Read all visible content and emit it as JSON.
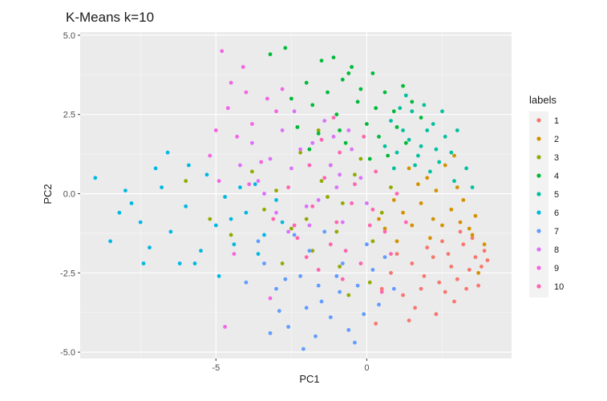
{
  "chart_data": {
    "type": "scatter",
    "title": "K-Means k=10",
    "xlabel": "PC1",
    "ylabel": "PC2",
    "xlim": [
      -9.5,
      4.8
    ],
    "ylim": [
      -5.2,
      5.1
    ],
    "x_ticks": [
      -5,
      0
    ],
    "x_tick_labels": [
      "-5",
      "0"
    ],
    "y_ticks": [
      -5.0,
      -2.5,
      0.0,
      2.5,
      5.0
    ],
    "y_tick_labels": [
      "-5.0",
      "-2.5",
      "0.0",
      "2.5",
      "5.0"
    ],
    "grid": true,
    "panel_background": "#ebebeb",
    "legend": {
      "title": "labels",
      "placement": "right"
    },
    "series": [
      {
        "name": "1",
        "color": "#F8766D",
        "points": [
          [
            3.2,
            -1.6
          ],
          [
            3.6,
            -2.0
          ],
          [
            2.8,
            -2.3
          ],
          [
            3.9,
            -1.8
          ],
          [
            2.5,
            -1.5
          ],
          [
            3.0,
            -2.7
          ],
          [
            3.4,
            -2.4
          ],
          [
            2.2,
            -2.0
          ],
          [
            3.7,
            -2.9
          ],
          [
            2.6,
            -3.1
          ],
          [
            1.9,
            -2.6
          ],
          [
            3.1,
            -1.2
          ],
          [
            2.9,
            -3.4
          ],
          [
            2.0,
            -1.7
          ],
          [
            3.5,
            -1.4
          ],
          [
            1.5,
            -2.2
          ],
          [
            2.4,
            -2.8
          ],
          [
            3.8,
            -2.3
          ],
          [
            1.2,
            -3.2
          ],
          [
            0.8,
            -2.5
          ],
          [
            1.6,
            -3.6
          ],
          [
            0.5,
            -3.0
          ],
          [
            2.3,
            -3.8
          ],
          [
            1.0,
            -1.9
          ],
          [
            4.0,
            -2.1
          ],
          [
            2.7,
            -1.9
          ],
          [
            3.3,
            -3.0
          ],
          [
            1.8,
            -3.0
          ],
          [
            0.3,
            -4.1
          ],
          [
            1.4,
            -4.0
          ]
        ]
      },
      {
        "name": "2",
        "color": "#D39200",
        "points": [
          [
            3.5,
            -1.3
          ],
          [
            2.8,
            -0.5
          ],
          [
            2.2,
            -0.8
          ],
          [
            3.0,
            0.2
          ],
          [
            2.5,
            -1.0
          ],
          [
            1.8,
            -0.3
          ],
          [
            3.6,
            -0.7
          ],
          [
            2.0,
            0.5
          ],
          [
            1.5,
            -1.0
          ],
          [
            3.2,
            -0.2
          ],
          [
            2.6,
            0.9
          ],
          [
            1.2,
            -0.6
          ],
          [
            3.9,
            -1.6
          ],
          [
            1.7,
            0.3
          ],
          [
            2.9,
            1.2
          ],
          [
            0.9,
            -0.2
          ],
          [
            3.4,
            -1.1
          ],
          [
            2.3,
            0.1
          ],
          [
            1.4,
            0.8
          ],
          [
            0.6,
            -1.1
          ],
          [
            3.1,
            -0.9
          ],
          [
            2.1,
            -1.4
          ],
          [
            1.0,
            -1.5
          ],
          [
            3.7,
            -2.5
          ],
          [
            0.4,
            -0.8
          ]
        ]
      },
      {
        "name": "3",
        "color": "#93AA00",
        "points": [
          [
            -2.0,
            -0.8
          ],
          [
            -1.5,
            0.4
          ],
          [
            -0.8,
            -0.3
          ],
          [
            -2.5,
            -1.1
          ],
          [
            -1.2,
            0.9
          ],
          [
            0.2,
            -1.5
          ],
          [
            -3.0,
            0.1
          ],
          [
            -0.4,
            0.6
          ],
          [
            -1.8,
            -1.8
          ],
          [
            -0.9,
            -2.3
          ],
          [
            -2.2,
            1.3
          ],
          [
            0.5,
            -0.6
          ],
          [
            -1.0,
            -1.2
          ],
          [
            -3.4,
            -0.5
          ],
          [
            -0.2,
            1.1
          ],
          [
            -4.5,
            -1.3
          ],
          [
            -5.2,
            -0.8
          ],
          [
            -1.6,
            2.0
          ],
          [
            0.8,
            0.2
          ],
          [
            -0.6,
            -3.2
          ],
          [
            -2.8,
            -2.2
          ],
          [
            -1.3,
            -0.1
          ],
          [
            0.1,
            -2.8
          ],
          [
            -3.8,
            0.7
          ],
          [
            -6.0,
            0.4
          ]
        ]
      },
      {
        "name": "4",
        "color": "#00BA38",
        "points": [
          [
            -1.5,
            4.2
          ],
          [
            -0.8,
            3.6
          ],
          [
            0.2,
            3.8
          ],
          [
            -0.3,
            2.9
          ],
          [
            0.6,
            3.2
          ],
          [
            -1.0,
            2.5
          ],
          [
            -2.0,
            3.5
          ],
          [
            0.9,
            2.6
          ],
          [
            -0.5,
            4.0
          ],
          [
            1.2,
            3.4
          ],
          [
            -1.8,
            2.8
          ],
          [
            0.0,
            2.2
          ],
          [
            0.4,
            1.8
          ],
          [
            -1.3,
            3.2
          ],
          [
            -2.3,
            2.1
          ],
          [
            1.5,
            2.9
          ],
          [
            -0.7,
            1.6
          ],
          [
            0.7,
            1.2
          ],
          [
            -1.6,
            1.9
          ],
          [
            1.0,
            2.1
          ],
          [
            -2.7,
            4.6
          ],
          [
            -0.2,
            3.3
          ],
          [
            -1.1,
            4.3
          ],
          [
            0.3,
            2.7
          ],
          [
            -2.5,
            3.0
          ],
          [
            1.8,
            2.4
          ],
          [
            -0.9,
            2.0
          ],
          [
            1.3,
            1.6
          ],
          [
            -3.2,
            4.4
          ],
          [
            -1.9,
            1.4
          ],
          [
            0.1,
            1.1
          ],
          [
            -0.6,
            3.8
          ]
        ]
      },
      {
        "name": "5",
        "color": "#00C19F",
        "points": [
          [
            1.2,
            2.0
          ],
          [
            1.8,
            1.5
          ],
          [
            2.2,
            2.2
          ],
          [
            1.5,
            2.6
          ],
          [
            2.6,
            1.8
          ],
          [
            1.0,
            1.3
          ],
          [
            2.4,
            1.0
          ],
          [
            1.9,
            2.8
          ],
          [
            2.8,
            1.3
          ],
          [
            1.4,
            1.7
          ],
          [
            0.8,
            2.3
          ],
          [
            2.1,
            0.7
          ],
          [
            3.0,
            2.0
          ],
          [
            1.6,
            0.9
          ],
          [
            2.9,
            0.4
          ],
          [
            0.6,
            1.5
          ],
          [
            2.0,
            2.0
          ],
          [
            1.3,
            3.1
          ],
          [
            3.3,
            0.8
          ],
          [
            2.5,
            2.6
          ],
          [
            0.9,
            0.8
          ],
          [
            1.7,
            1.2
          ],
          [
            2.3,
            1.4
          ],
          [
            1.1,
            2.7
          ],
          [
            3.5,
            0.2
          ]
        ]
      },
      {
        "name": "6",
        "color": "#00B9E3",
        "points": [
          [
            -9.0,
            0.5
          ],
          [
            -8.5,
            -1.5
          ],
          [
            -8.0,
            0.1
          ],
          [
            -7.5,
            -0.9
          ],
          [
            -7.2,
            -1.7
          ],
          [
            -6.8,
            0.2
          ],
          [
            -6.5,
            -1.2
          ],
          [
            -6.0,
            -0.4
          ],
          [
            -5.7,
            -2.2
          ],
          [
            -5.3,
            0.6
          ],
          [
            -5.0,
            -1.0
          ],
          [
            -4.7,
            -0.1
          ],
          [
            -4.4,
            -1.6
          ],
          [
            -4.0,
            -0.6
          ],
          [
            -3.7,
            0.3
          ],
          [
            -3.4,
            -1.3
          ],
          [
            -3.0,
            -0.2
          ],
          [
            -6.6,
            1.3
          ],
          [
            -7.8,
            -0.3
          ],
          [
            -5.5,
            -1.8
          ],
          [
            -4.2,
            0.2
          ],
          [
            -8.2,
            -0.6
          ],
          [
            -6.2,
            -2.2
          ],
          [
            -3.6,
            -1.9
          ],
          [
            -7.0,
            0.8
          ],
          [
            -4.9,
            -2.6
          ],
          [
            -2.8,
            -0.9
          ],
          [
            -5.9,
            0.9
          ],
          [
            -7.4,
            -2.2
          ],
          [
            -4.5,
            -0.8
          ]
        ]
      },
      {
        "name": "7",
        "color": "#619CFF",
        "points": [
          [
            -2.2,
            -2.6
          ],
          [
            -1.5,
            -3.4
          ],
          [
            -0.8,
            -2.2
          ],
          [
            -3.0,
            -3.0
          ],
          [
            -1.2,
            -3.9
          ],
          [
            -0.3,
            -2.9
          ],
          [
            -2.6,
            -4.2
          ],
          [
            -1.9,
            -1.8
          ],
          [
            0.4,
            -3.5
          ],
          [
            -0.6,
            -4.3
          ],
          [
            -3.4,
            -2.2
          ],
          [
            -2.0,
            -3.6
          ],
          [
            0.2,
            -2.4
          ],
          [
            -1.0,
            -2.6
          ],
          [
            -2.9,
            -3.7
          ],
          [
            -0.4,
            -4.7
          ],
          [
            -1.7,
            -4.5
          ],
          [
            0.6,
            -2.0
          ],
          [
            -3.6,
            -1.5
          ],
          [
            -2.4,
            -1.3
          ],
          [
            -1.4,
            -1.2
          ],
          [
            -0.1,
            -3.8
          ],
          [
            -3.2,
            -4.4
          ],
          [
            -0.9,
            -3.1
          ],
          [
            0.9,
            -3.0
          ],
          [
            -2.1,
            -4.9
          ],
          [
            -4.0,
            -2.8
          ],
          [
            -1.6,
            -2.9
          ],
          [
            0.0,
            -1.6
          ],
          [
            -2.7,
            -2.7
          ]
        ]
      },
      {
        "name": "8",
        "color": "#DB72FB",
        "points": [
          [
            -2.5,
            0.8
          ],
          [
            -1.8,
            1.6
          ],
          [
            -1.0,
            0.2
          ],
          [
            -3.2,
            1.1
          ],
          [
            -0.5,
            1.4
          ],
          [
            -2.0,
            -0.4
          ],
          [
            -1.4,
            2.3
          ],
          [
            -3.6,
            0.4
          ],
          [
            -0.8,
            -0.9
          ],
          [
            -2.8,
            2.0
          ],
          [
            -1.2,
            0.9
          ],
          [
            -0.2,
            0.5
          ],
          [
            -3.0,
            -0.6
          ],
          [
            -2.2,
            1.4
          ],
          [
            -1.6,
            -0.2
          ],
          [
            -0.6,
            2.0
          ],
          [
            -3.8,
            1.6
          ],
          [
            -2.6,
            -1.2
          ],
          [
            -1.1,
            1.8
          ],
          [
            0.0,
            -0.3
          ],
          [
            -2.4,
            2.6
          ],
          [
            -3.4,
            0.0
          ],
          [
            -0.9,
            0.6
          ],
          [
            -1.9,
            -1.0
          ],
          [
            -4.2,
            0.9
          ]
        ]
      },
      {
        "name": "9",
        "color": "#F564E3",
        "points": [
          [
            -4.8,
            4.5
          ],
          [
            -4.5,
            3.5
          ],
          [
            -4.0,
            3.2
          ],
          [
            -3.3,
            3.0
          ],
          [
            -4.6,
            2.7
          ],
          [
            -4.3,
            1.8
          ],
          [
            -3.8,
            2.2
          ],
          [
            -3.0,
            2.6
          ],
          [
            -5.2,
            1.2
          ],
          [
            -4.9,
            0.4
          ],
          [
            -3.5,
            1.0
          ],
          [
            -4.4,
            -1.9
          ],
          [
            -3.2,
            -3.3
          ],
          [
            -4.7,
            -4.2
          ],
          [
            -2.8,
            3.3
          ],
          [
            -3.9,
            0.3
          ],
          [
            -5.0,
            2.0
          ],
          [
            -4.1,
            4.0
          ]
        ]
      },
      {
        "name": "10",
        "color": "#FF64B0",
        "points": [
          [
            -1.8,
            -0.4
          ],
          [
            -1.0,
            -0.9
          ],
          [
            -0.4,
            0.3
          ],
          [
            -2.3,
            -1.4
          ],
          [
            -0.7,
            -1.8
          ],
          [
            0.3,
            0.7
          ],
          [
            -1.4,
            0.5
          ],
          [
            -2.6,
            0.2
          ],
          [
            0.6,
            -1.2
          ],
          [
            -0.2,
            -2.2
          ],
          [
            -1.6,
            -2.4
          ],
          [
            1.0,
            0.0
          ],
          [
            -0.9,
            1.3
          ],
          [
            -2.0,
            -2.0
          ],
          [
            0.2,
            -0.5
          ],
          [
            -1.2,
            -1.6
          ],
          [
            -0.5,
            -0.3
          ],
          [
            -3.1,
            -0.8
          ],
          [
            0.8,
            -1.9
          ],
          [
            -1.5,
            1.7
          ],
          [
            -0.1,
            1.8
          ],
          [
            -2.4,
            -1.0
          ],
          [
            1.3,
            -0.9
          ],
          [
            -0.8,
            -2.7
          ],
          [
            0.5,
            -3.1
          ],
          [
            -1.9,
            0.9
          ],
          [
            0.1,
            -1.0
          ],
          [
            -1.1,
            2.4
          ]
        ]
      }
    ]
  }
}
